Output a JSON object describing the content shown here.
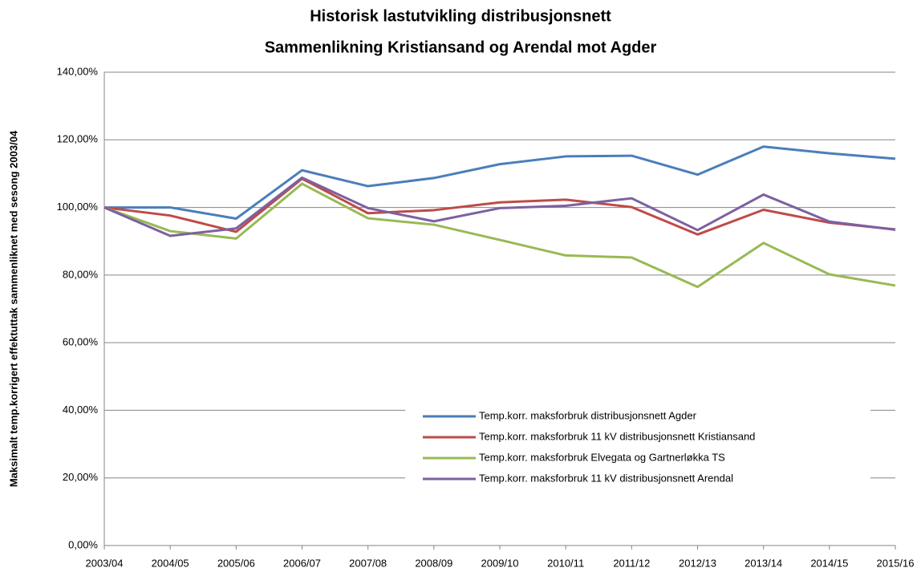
{
  "chart_data": {
    "type": "line",
    "title": "Historisk lastutvikling distribusjonsnett",
    "subtitle": "Sammenlikning Kristiansand og Arendal mot Agder",
    "y_label": "Maksimalt temp.korrigert effektuttak sammenliknet med sesong 2003/04",
    "categories": [
      "2003/04",
      "2004/05",
      "2005/06",
      "2006/07",
      "2007/08",
      "2008/09",
      "2009/10",
      "2010/11",
      "2011/12",
      "2012/13",
      "2013/14",
      "2014/15",
      "2015/16"
    ],
    "series": [
      {
        "name": "Temp.korr. maksforbruk distribusjonsnett Agder",
        "color": "#4a7ebb",
        "values": [
          100,
          100,
          96.7,
          111,
          106.3,
          108.7,
          112.8,
          115.1,
          115.3,
          109.7,
          118,
          116,
          114.4
        ]
      },
      {
        "name": "Temp.korr. maksforbruk 11 kV distribusjonsnett Kristiansand",
        "color": "#be4b48",
        "values": [
          100,
          97.6,
          92.8,
          108.5,
          98.3,
          99.2,
          101.5,
          102.3,
          100.1,
          92,
          99.3,
          95.5,
          93.5
        ]
      },
      {
        "name": "Temp.korr. maksforbruk Elvegata og Gartnerløkka TS",
        "color": "#98b954",
        "values": [
          100,
          93,
          90.8,
          107,
          96.8,
          94.9,
          90.4,
          85.8,
          85.2,
          76.5,
          89.5,
          80.2,
          76.9
        ]
      },
      {
        "name": "Temp.korr. maksforbruk 11 kV distribusjonsnett Arendal",
        "color": "#7d60a0",
        "values": [
          100,
          91.6,
          93.8,
          108.8,
          99.8,
          95.9,
          99.8,
          100.5,
          102.7,
          93.3,
          103.8,
          95.8,
          93.4
        ]
      }
    ],
    "ylim": [
      0,
      140
    ],
    "yticks": [
      {
        "value": 0,
        "label": "0,00%"
      },
      {
        "value": 20,
        "label": "20,00%"
      },
      {
        "value": 40,
        "label": "40,00%"
      },
      {
        "value": 60,
        "label": "60,00%"
      },
      {
        "value": 80,
        "label": "80,00%"
      },
      {
        "value": 100,
        "label": "100,00%"
      },
      {
        "value": 120,
        "label": "120,00%"
      },
      {
        "value": 140,
        "label": "140,00%"
      }
    ],
    "grid": true
  }
}
